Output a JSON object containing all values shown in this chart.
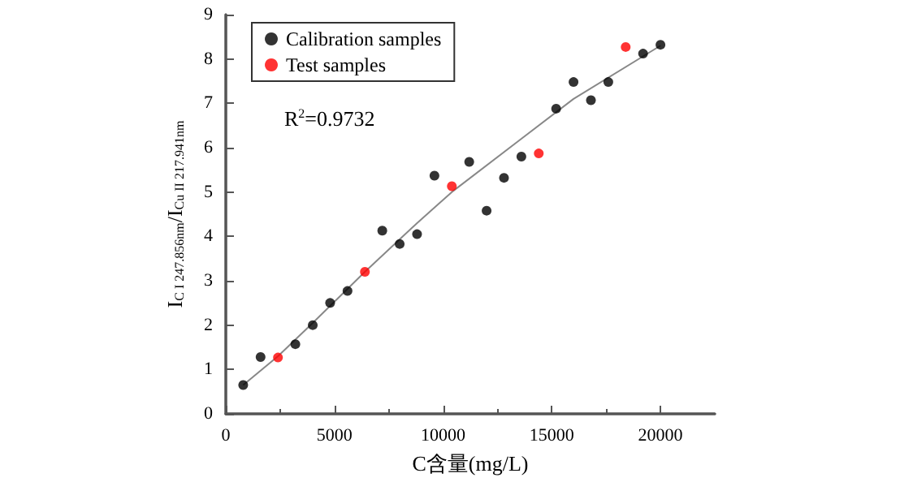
{
  "chart_data": {
    "type": "scatter",
    "xlabel": "C含量(mg/L)",
    "ylabel": "I$_{C I 247.856nm}$/I$_{Cu II 217.941nm}$",
    "annotations": [
      "R$^{2}$=0.9732"
    ],
    "xlim": [
      0,
      22500
    ],
    "xticks": [
      0,
      5000,
      10000,
      15000,
      20000
    ],
    "ylim": [
      0,
      9
    ],
    "yticks": [
      0,
      1,
      2,
      3,
      4,
      5,
      6,
      7,
      8,
      9
    ],
    "grid": false,
    "legend": "top left",
    "marker": "circle",
    "series": [
      {
        "name": "Calibration samples",
        "color": "#000000",
        "x": [
          800,
          1600,
          3200,
          4000,
          4800,
          5600,
          7200,
          8000,
          8800,
          9600,
          11200,
          12000,
          12800,
          13600,
          15200,
          16000,
          16800,
          17600,
          19200,
          20000
        ],
        "values": [
          0.65,
          1.28,
          1.57,
          2.0,
          2.5,
          2.77,
          4.13,
          3.83,
          4.05,
          5.37,
          5.68,
          4.58,
          5.32,
          5.8,
          6.88,
          7.48,
          7.07,
          7.48,
          8.12,
          8.32
        ]
      },
      {
        "name": "Test samples",
        "color": "#ff0000",
        "x": [
          2400,
          6400,
          10400,
          14400,
          18400
        ],
        "values": [
          1.27,
          3.2,
          5.13,
          5.87,
          8.27
        ]
      },
      {
        "type": "line",
        "color": "#888888",
        "marker": "none",
        "x": [
          800,
          2400,
          4000,
          6400,
          8800,
          10400,
          13600,
          16000,
          20000
        ],
        "values": [
          0.65,
          1.3,
          2.05,
          3.2,
          4.3,
          5.0,
          6.2,
          7.1,
          8.3
        ]
      }
    ]
  }
}
